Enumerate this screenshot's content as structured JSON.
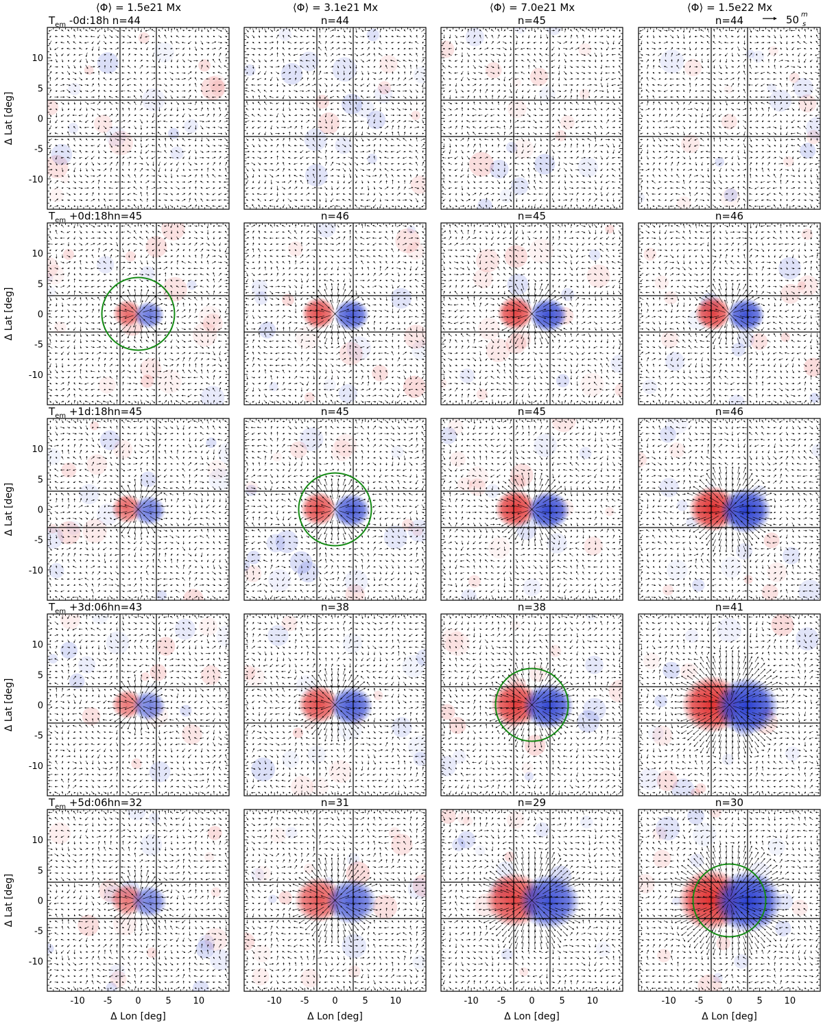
{
  "chart_data": {
    "type": "heatmap",
    "description_axes": {
      "xlabel": "Δ Lon [deg]",
      "ylabel": "Δ Lat [deg]",
      "xlim": [
        -15,
        15
      ],
      "ylim": [
        -15,
        15
      ],
      "xticks": [
        -10,
        -5,
        0,
        5,
        10
      ],
      "yticks": [
        -10,
        -5,
        0,
        5,
        10
      ],
      "x_tick_labels": [
        "-10",
        "-5",
        "0",
        "5",
        "10"
      ],
      "y_tick_labels": [
        "-10",
        "-5",
        "0",
        "5",
        "10"
      ],
      "guide_lines_x": [
        -3,
        3
      ],
      "guide_lines_y": [
        -3,
        3
      ]
    },
    "columns": [
      {
        "label": "⟨Φ⟩ = 1.5e21 Mx",
        "flux_Mx": 1.5e+21
      },
      {
        "label": "⟨Φ⟩ = 3.1e21 Mx",
        "flux_Mx": 3.1e+21
      },
      {
        "label": "⟨Φ⟩ = 7.0e21 Mx",
        "flux_Mx": 7e+21
      },
      {
        "label": "⟨Φ⟩ = 1.5e22 Mx",
        "flux_Mx": 1.5e+22
      }
    ],
    "rows": [
      {
        "time": "T",
        "time_sub": "em",
        "time_rest": " -0d:18h",
        "n": [
          "n=44",
          "n=44",
          "n=45",
          "n=44"
        ],
        "row_label_sep": "  "
      },
      {
        "time": "T",
        "time_sub": "em",
        "time_rest": " +0d:18h",
        "n": [
          "n=45",
          "n=46",
          "n=45",
          "n=46"
        ],
        "row_label_sep": ""
      },
      {
        "time": "T",
        "time_sub": "em",
        "time_rest": " +1d:18h",
        "n": [
          "n=45",
          "n=45",
          "n=45",
          "n=46"
        ],
        "row_label_sep": ""
      },
      {
        "time": "T",
        "time_sub": "em",
        "time_rest": " +3d:06h",
        "n": [
          "n=43",
          "n=38",
          "n=38",
          "n=41"
        ],
        "row_label_sep": ""
      },
      {
        "time": "T",
        "time_sub": "em",
        "time_rest": " +5d:06h",
        "n": [
          "n=32",
          "n=31",
          "n=29",
          "n=30"
        ],
        "row_label_sep": ""
      }
    ],
    "bipoles": [
      [
        null,
        null,
        null,
        null
      ],
      [
        {
          "sep": 2.0,
          "amp": 0.7,
          "r": 1.2
        },
        {
          "sep": 3.0,
          "amp": 0.85,
          "r": 1.4
        },
        {
          "sep": 3.0,
          "amp": 0.9,
          "r": 1.5
        },
        {
          "sep": 3.0,
          "amp": 0.9,
          "r": 1.5
        }
      ],
      [
        {
          "sep": 2.0,
          "amp": 0.7,
          "r": 1.3
        },
        {
          "sep": 3.0,
          "amp": 0.85,
          "r": 1.5
        },
        {
          "sep": 3.0,
          "amp": 0.95,
          "r": 1.7
        },
        {
          "sep": 3.0,
          "amp": 1.0,
          "r": 2.0
        }
      ],
      [
        {
          "sep": 2.0,
          "amp": 0.65,
          "r": 1.3
        },
        {
          "sep": 3.0,
          "amp": 0.85,
          "r": 1.7
        },
        {
          "sep": 3.0,
          "amp": 0.95,
          "r": 2.0
        },
        {
          "sep": 3.2,
          "amp": 1.0,
          "r": 2.5
        }
      ],
      [
        {
          "sep": 2.0,
          "amp": 0.65,
          "r": 1.4
        },
        {
          "sep": 3.0,
          "amp": 0.8,
          "r": 2.0
        },
        {
          "sep": 3.2,
          "amp": 0.9,
          "r": 2.4
        },
        {
          "sep": 3.4,
          "amp": 1.0,
          "r": 2.7
        }
      ]
    ],
    "green_circles": [
      {
        "row": 1,
        "col": 0,
        "cx": 0,
        "cy": 0,
        "radius_deg": 6
      },
      {
        "row": 2,
        "col": 1,
        "cx": 0,
        "cy": 0,
        "radius_deg": 6
      },
      {
        "row": 3,
        "col": 2,
        "cx": 0,
        "cy": 0,
        "radius_deg": 6
      },
      {
        "row": 4,
        "col": 3,
        "cx": 0,
        "cy": 0,
        "radius_deg": 6
      }
    ],
    "colors": {
      "positive": "#e03030",
      "negative": "#2a3fd0",
      "circle": "#138a13",
      "arrow": "#000000"
    },
    "legend": {
      "arrow_label": "50",
      "unit_num": "m",
      "unit_den": "s",
      "position": "top-right"
    }
  }
}
